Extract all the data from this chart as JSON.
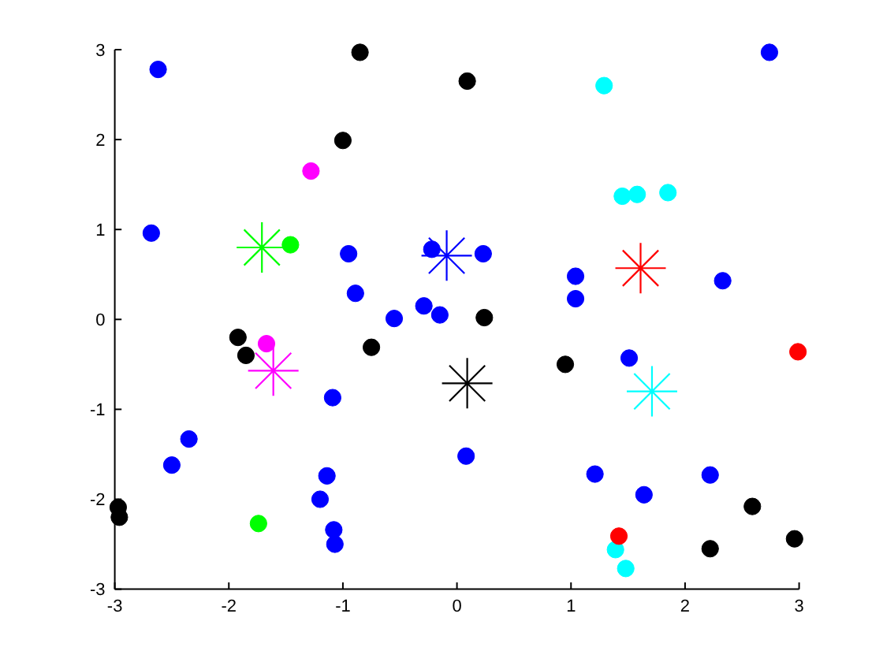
{
  "chart_data": {
    "type": "scatter",
    "marker": "circle",
    "xlim": [
      -3,
      3
    ],
    "ylim": [
      -3,
      3
    ],
    "xticks": [
      -3,
      -2,
      -1,
      0,
      1,
      2,
      3
    ],
    "yticks": [
      -3,
      -2,
      -1,
      0,
      1,
      2,
      3
    ],
    "series": [
      {
        "color": "#0000ff",
        "x": [
          -2.62,
          -2.68,
          -0.95,
          -0.89,
          -0.55,
          -0.29,
          -0.15,
          -0.22,
          2.74,
          0.23,
          1.04,
          1.04,
          2.33,
          -1.09,
          -2.35,
          -2.5,
          -1.14,
          -1.2,
          -1.08,
          -1.07,
          1.51,
          0.08,
          1.21,
          2.22,
          1.64
        ],
        "values": [
          2.78,
          0.96,
          0.73,
          0.29,
          0.01,
          0.15,
          0.05,
          0.78,
          2.97,
          0.73,
          0.48,
          0.23,
          0.43,
          -0.87,
          -1.33,
          -1.62,
          -1.74,
          -2.0,
          -2.34,
          -2.5,
          -0.43,
          -1.52,
          -1.72,
          -1.73,
          -1.95
        ]
      },
      {
        "color": "#000000",
        "x": [
          -0.85,
          -1.0,
          0.09,
          0.24,
          -1.92,
          -1.85,
          -0.75,
          -2.97,
          -2.96,
          0.95,
          2.59,
          2.22,
          2.96
        ],
        "values": [
          2.97,
          1.99,
          2.65,
          0.02,
          -0.2,
          -0.4,
          -0.31,
          -2.09,
          -2.2,
          -0.5,
          -2.08,
          -2.55,
          -2.44
        ]
      },
      {
        "color": "#00ffff",
        "x": [
          1.29,
          1.45,
          1.58,
          1.85,
          1.39,
          1.48
        ],
        "values": [
          2.6,
          1.37,
          1.39,
          1.41,
          -2.56,
          -2.77
        ]
      },
      {
        "color": "#ff0000",
        "x": [
          2.99,
          1.42
        ],
        "values": [
          -0.36,
          -2.41
        ]
      },
      {
        "color": "#ff00ff",
        "x": [
          -1.28,
          -1.67
        ],
        "values": [
          1.65,
          -0.27
        ]
      },
      {
        "color": "#00ff00",
        "x": [
          -1.46,
          -1.74
        ],
        "values": [
          0.83,
          -2.27
        ]
      },
      {
        "color": "#0000ff",
        "marker": "star",
        "x": [
          -0.09
        ],
        "values": [
          0.71
        ]
      },
      {
        "color": "#000000",
        "marker": "star",
        "x": [
          0.09
        ],
        "values": [
          -0.71
        ]
      },
      {
        "color": "#00ffff",
        "marker": "star",
        "x": [
          1.71
        ],
        "values": [
          -0.8
        ]
      },
      {
        "color": "#ff0000",
        "marker": "star",
        "x": [
          1.61
        ],
        "values": [
          0.57
        ]
      },
      {
        "color": "#ff00ff",
        "marker": "star",
        "x": [
          -1.61
        ],
        "values": [
          -0.57
        ]
      },
      {
        "color": "#00ff00",
        "marker": "star",
        "x": [
          -1.71
        ],
        "values": [
          0.8
        ]
      }
    ]
  }
}
